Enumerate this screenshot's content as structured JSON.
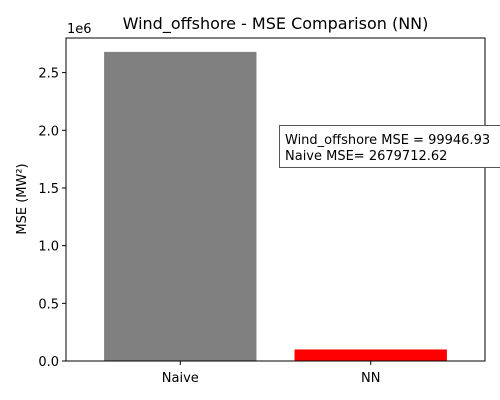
{
  "chart_data": {
    "type": "bar",
    "title": "Wind_offshore - MSE Comparison (NN)",
    "xlabel": "",
    "ylabel": "MSE (MW²)",
    "y_offset_text": "1e6",
    "categories": [
      "Naive",
      "NN"
    ],
    "values": [
      2679712.62,
      99946.93
    ],
    "bar_colors": [
      "#808080",
      "#ff0000"
    ],
    "ylim": [
      0,
      2800000
    ],
    "yticks": [
      0,
      500000,
      1000000,
      1500000,
      2000000,
      2500000
    ],
    "ytick_labels": [
      "0.0",
      "0.5",
      "1.0",
      "1.5",
      "2.0",
      "2.5"
    ],
    "grid": false,
    "annotation": {
      "lines": [
        "Wind_offshore MSE = 99946.93",
        "Naive MSE= 2679712.62"
      ]
    }
  }
}
